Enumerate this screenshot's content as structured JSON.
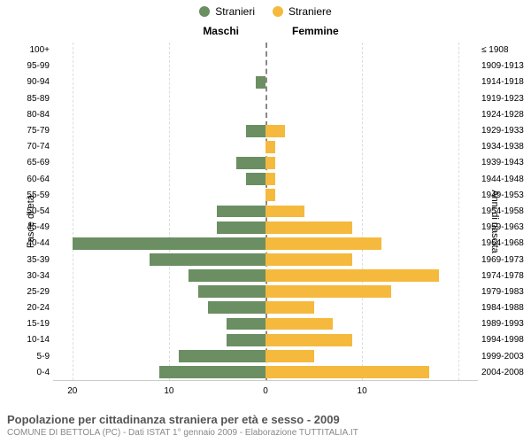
{
  "chart": {
    "type": "population-pyramid",
    "legend": [
      {
        "label": "Stranieri",
        "color": "#6b8e62"
      },
      {
        "label": "Straniere",
        "color": "#f5b93d"
      }
    ],
    "header_male": "Maschi",
    "header_female": "Femmine",
    "ylabel_left": "Fasce di età",
    "ylabel_right": "Anni di nascita",
    "age_groups": [
      "100+",
      "95-99",
      "90-94",
      "85-89",
      "80-84",
      "75-79",
      "70-74",
      "65-69",
      "60-64",
      "55-59",
      "50-54",
      "45-49",
      "40-44",
      "35-39",
      "30-34",
      "25-29",
      "20-24",
      "15-19",
      "10-14",
      "5-9",
      "0-4"
    ],
    "birth_years": [
      "≤ 1908",
      "1909-1913",
      "1914-1918",
      "1919-1923",
      "1924-1928",
      "1929-1933",
      "1934-1938",
      "1939-1943",
      "1944-1948",
      "1949-1953",
      "1954-1958",
      "1959-1963",
      "1964-1968",
      "1969-1973",
      "1974-1978",
      "1979-1983",
      "1984-1988",
      "1989-1993",
      "1994-1998",
      "1999-2003",
      "2004-2008"
    ],
    "male_values": [
      0,
      0,
      1,
      0,
      0,
      2,
      0,
      3,
      2,
      0,
      5,
      5,
      20,
      12,
      8,
      7,
      6,
      4,
      4,
      9,
      11
    ],
    "female_values": [
      0,
      0,
      0,
      0,
      0,
      2,
      1,
      1,
      1,
      1,
      4,
      9,
      12,
      9,
      18,
      13,
      5,
      7,
      9,
      5,
      17
    ],
    "male_color": "#6b8e62",
    "female_color": "#f5b93d",
    "x_max": 22,
    "x_ticks_left": [
      20,
      10,
      0
    ],
    "x_ticks_right": [
      0,
      10
    ],
    "bar_height_ratio": 0.76,
    "background_color": "#ffffff",
    "grid_color": "#dddddd",
    "center_line_color": "#888888",
    "axis_fontsize": 10,
    "label_fontsize": 11,
    "header_fontsize": 12,
    "legend_fontsize": 12,
    "title_fontsize": 13,
    "subtitle_fontsize": 10,
    "text_color": "#555555",
    "subtext_color": "#888888"
  },
  "footer": {
    "title": "Popolazione per cittadinanza straniera per età e sesso - 2009",
    "subtitle": "COMUNE DI BETTOLA (PC) - Dati ISTAT 1° gennaio 2009 - Elaborazione TUTTITALIA.IT"
  }
}
